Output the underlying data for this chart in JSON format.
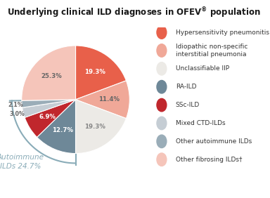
{
  "title_line1": "Underlying clinical ILD diagnoses in OFEV",
  "title_reg": "®",
  "title_line2": " population",
  "slices": [
    {
      "label": "Hypersensitivity pneumonitis",
      "value": 19.3,
      "color": "#E8604A",
      "pct_label": "19.3%",
      "pct_color": "white"
    },
    {
      "label": "Idiopathic non-specific\ninterstitial pneumonia",
      "value": 11.4,
      "color": "#F0A898",
      "pct_label": "11.4%",
      "pct_color": "#666666"
    },
    {
      "label": "Unclassifiable IIP",
      "value": 19.3,
      "color": "#ECEAE6",
      "pct_label": "19.3%",
      "pct_color": "#888888"
    },
    {
      "label": "RA-ILD",
      "value": 12.7,
      "color": "#6E8898",
      "pct_label": "12.7%",
      "pct_color": "white"
    },
    {
      "label": "SSc-ILD",
      "value": 6.9,
      "color": "#C0272D",
      "pct_label": "6.9%",
      "pct_color": "white"
    },
    {
      "label": "Mixed CTD-ILDs",
      "value": 3.0,
      "color": "#C5CDD4",
      "pct_label": "3.0%",
      "pct_color": "#666666"
    },
    {
      "label": "Other autoimmune ILDs",
      "value": 2.1,
      "color": "#9AADB8",
      "pct_label": "2.1%",
      "pct_color": "#666666"
    },
    {
      "label": "Other fibrosing ILDs†",
      "value": 25.3,
      "color": "#F5C5BA",
      "pct_label": "25.3%",
      "pct_color": "#666666"
    }
  ],
  "autoimmune_label": "Autoimmune\nILDs 24.7%",
  "autoimmune_color": "#8AACB8",
  "background_color": "#FFFFFF",
  "title_fontsize": 8.5,
  "legend_fontsize": 6.5,
  "pct_fontsize": 6.2
}
